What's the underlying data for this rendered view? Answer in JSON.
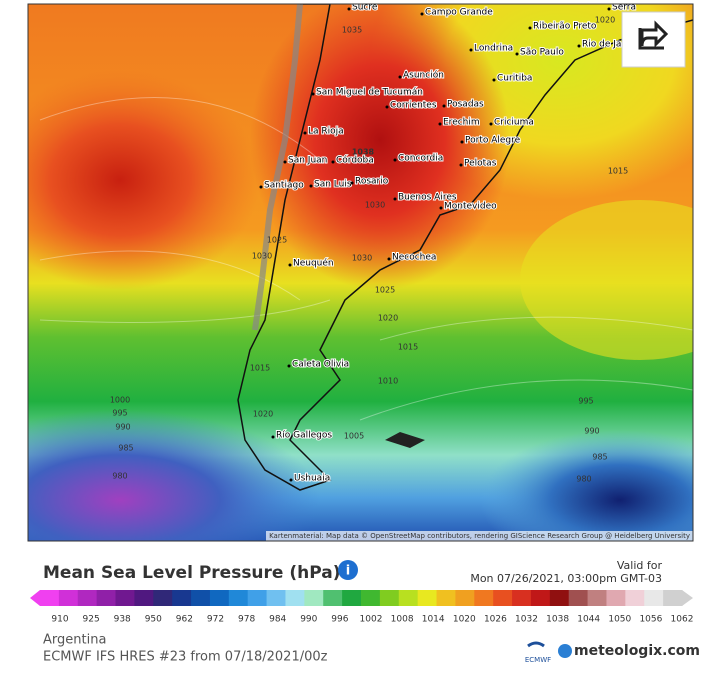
{
  "map": {
    "cities": [
      "Sucre",
      "Campo Grande",
      "Ribeirão Preto",
      "Serra",
      "Londrina",
      "São Paulo",
      "Rio de Ja",
      "Curitiba",
      "Asunción",
      "San Miguel de Tucumán",
      "Corrientes",
      "Posadas",
      "Erechim",
      "Criciuma",
      "La Rioja",
      "Porto Alegre",
      "San Juan",
      "Córdoba",
      "Concordia",
      "Pelotas",
      "Santiago",
      "San Luis",
      "Rosario",
      "Buenos Aires",
      "Montevideo",
      "Neuquén",
      "Necochea",
      "Caleta Olivia",
      "Río Gallegos",
      "Ushuaia"
    ],
    "isobar_labels": [
      1020,
      1035,
      1038,
      1015,
      1030,
      1025,
      1030,
      1030,
      1025,
      1020,
      1015,
      1010,
      1005,
      1015,
      1020,
      1000,
      995,
      990,
      985,
      980,
      995,
      990,
      985,
      980
    ],
    "attribution": "Kartenmaterial: Map data © OpenStreetMap contributors, rendering GIScience Research Group @ Heidelberg University"
  },
  "legend": {
    "title": "Mean Sea Level Pressure (hPa)",
    "valid_label": "Valid for",
    "valid_time": "Mon 07/26/2021, 03:00pm GMT-03",
    "scale": [
      910,
      925,
      938,
      950,
      962,
      972,
      978,
      984,
      990,
      996,
      1002,
      1008,
      1014,
      1020,
      1026,
      1032,
      1038,
      1044,
      1050,
      1056,
      1062
    ]
  },
  "footer": {
    "region": "Argentina",
    "model": "ECMWF IFS HRES #23 from 07/18/2021/00z",
    "ecmwf": "ECMWF",
    "brand": "meteologix.com"
  }
}
